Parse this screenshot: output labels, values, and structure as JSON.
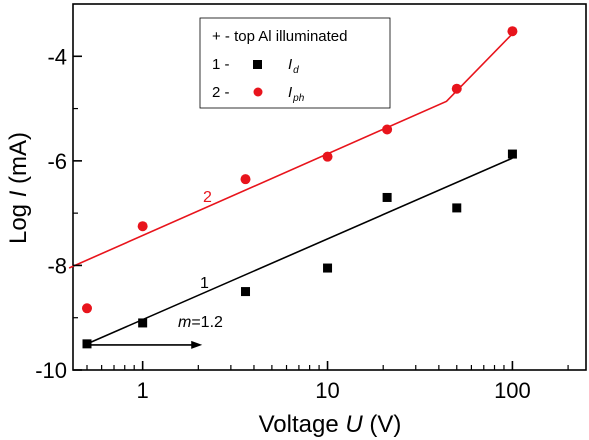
{
  "chart_data": {
    "type": "scatter",
    "xscale": "log",
    "xlim": [
      0.42,
      250
    ],
    "ylim": [
      -10,
      -3
    ],
    "xticks": [
      1,
      10,
      100
    ],
    "yticks": [
      -10,
      -8,
      -6,
      -4
    ],
    "xlabel_prefix": "Voltage ",
    "xlabel_var": "U",
    "xlabel_suffix": " (V)",
    "ylabel_prefix": "Log ",
    "ylabel_var": "I",
    "ylabel_suffix": " (mA)",
    "grid": false,
    "legend_placement": "top-center",
    "legend_header": "+ - top Al illuminated",
    "series": [
      {
        "legend_num": "1 -",
        "legend_sym": "I",
        "legend_sub": "d",
        "label": "1",
        "marker": "square",
        "color": "#000000",
        "x": [
          0.5,
          1,
          3.6,
          10,
          21,
          50,
          100
        ],
        "y": [
          -9.5,
          -9.1,
          -8.5,
          -8.05,
          -6.7,
          -6.9,
          -5.87
        ],
        "fit": {
          "x": [
            0.5,
            100
          ],
          "y": [
            -9.5,
            -5.95
          ]
        }
      },
      {
        "legend_num": "2 -",
        "legend_sym": "I",
        "legend_sub": "ph",
        "label": "2",
        "marker": "circle",
        "color": "#e8141c",
        "x": [
          0.5,
          1,
          3.6,
          10,
          21,
          50,
          100
        ],
        "y": [
          -8.82,
          -7.25,
          -6.35,
          -5.92,
          -5.4,
          -4.62,
          -3.52
        ],
        "fit": {
          "x": [
            0.4,
            44,
            100
          ],
          "y": [
            -8.05,
            -4.86,
            -3.57
          ]
        }
      }
    ],
    "annotations": {
      "slope_var": "m",
      "slope_value": "=1.2",
      "arrow": {
        "x_from": 0.5,
        "x_to": 2.1,
        "y": -9.52
      }
    }
  }
}
